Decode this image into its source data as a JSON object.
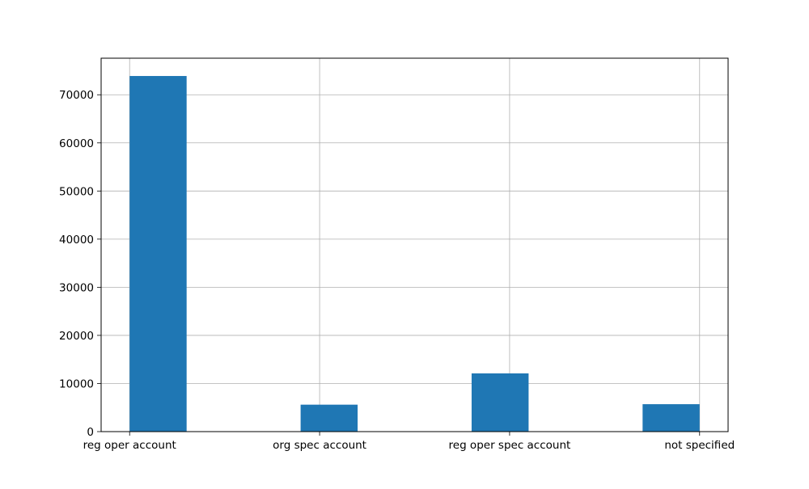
{
  "chart_data": {
    "type": "bar",
    "title": "",
    "xlabel": "",
    "ylabel": "",
    "bins": [
      {
        "start": 0.0,
        "end": 0.3,
        "value": 73900
      },
      {
        "start": 0.9,
        "end": 1.2,
        "value": 5600
      },
      {
        "start": 1.8,
        "end": 2.1,
        "value": 12100
      },
      {
        "start": 2.7,
        "end": 3.0,
        "value": 5700
      }
    ],
    "xlim": [
      -0.15,
      3.15
    ],
    "ylim": [
      0,
      77600
    ],
    "x_ticks": [
      {
        "pos": 0,
        "label": "reg oper account"
      },
      {
        "pos": 1,
        "label": "org spec account"
      },
      {
        "pos": 2,
        "label": "reg oper spec account"
      },
      {
        "pos": 3,
        "label": "not specified"
      }
    ],
    "y_ticks": [
      0,
      10000,
      20000,
      30000,
      40000,
      50000,
      60000,
      70000
    ],
    "grid": true,
    "bar_color": "#1f77b4",
    "grid_color": "#b0b0b0"
  }
}
